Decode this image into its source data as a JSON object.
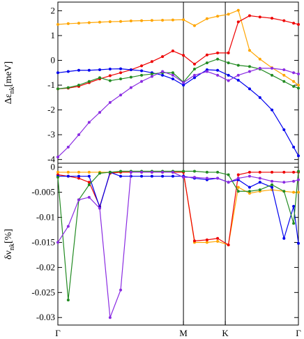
{
  "chart_data": [
    {
      "type": "line",
      "ylabel_main": "Δε",
      "ylabel_sub": "nk",
      "ylabel_unit": "[meV]",
      "ylim": [
        -4.15,
        2.35
      ],
      "yticks": [
        -4,
        -3,
        -2,
        -1,
        0,
        1,
        2
      ],
      "ytick_labels": [
        "-4",
        "-3",
        "-2",
        "-1",
        "0",
        "1",
        "2"
      ],
      "grid": false,
      "series": [
        {
          "color": "#ffa500",
          "x": [
            0.0,
            0.043,
            0.087,
            0.13,
            0.174,
            0.217,
            0.261,
            0.304,
            0.348,
            0.391,
            0.435,
            0.478,
            0.522,
            0.568,
            0.62,
            0.664,
            0.709,
            0.75,
            0.797,
            0.84,
            0.89,
            0.94,
            0.98,
            1.0
          ],
          "y": [
            1.45,
            1.48,
            1.5,
            1.52,
            1.54,
            1.56,
            1.57,
            1.59,
            1.6,
            1.61,
            1.62,
            1.63,
            1.64,
            1.4,
            1.68,
            1.78,
            1.86,
            2.02,
            0.4,
            0.05,
            -0.3,
            -0.6,
            -0.85,
            -1.0
          ]
        },
        {
          "color": "#ee0000",
          "x": [
            0.0,
            0.043,
            0.087,
            0.13,
            0.174,
            0.217,
            0.261,
            0.304,
            0.348,
            0.391,
            0.435,
            0.478,
            0.522,
            0.568,
            0.62,
            0.664,
            0.709,
            0.75,
            0.797,
            0.84,
            0.89,
            0.94,
            0.98,
            1.0
          ],
          "y": [
            -1.15,
            -1.12,
            -1.05,
            -0.9,
            -0.75,
            -0.62,
            -0.5,
            -0.38,
            -0.22,
            -0.05,
            0.15,
            0.38,
            0.2,
            -0.15,
            0.22,
            0.3,
            0.3,
            1.55,
            1.8,
            1.75,
            1.7,
            1.6,
            1.5,
            1.45
          ]
        },
        {
          "color": "#0000ee",
          "x": [
            0.0,
            0.043,
            0.087,
            0.13,
            0.174,
            0.217,
            0.261,
            0.304,
            0.348,
            0.391,
            0.435,
            0.478,
            0.522,
            0.568,
            0.62,
            0.664,
            0.709,
            0.75,
            0.797,
            0.84,
            0.89,
            0.94,
            0.98,
            1.0
          ],
          "y": [
            -0.5,
            -0.45,
            -0.4,
            -0.4,
            -0.38,
            -0.35,
            -0.34,
            -0.38,
            -0.42,
            -0.5,
            -0.6,
            -0.75,
            -1.0,
            -0.7,
            -0.38,
            -0.4,
            -0.6,
            -0.8,
            -1.15,
            -1.5,
            -2.0,
            -2.8,
            -3.5,
            -3.85
          ]
        },
        {
          "color": "#228b22",
          "x": [
            0.0,
            0.043,
            0.087,
            0.13,
            0.174,
            0.217,
            0.261,
            0.304,
            0.348,
            0.391,
            0.435,
            0.478,
            0.522,
            0.568,
            0.62,
            0.664,
            0.709,
            0.75,
            0.797,
            0.84,
            0.89,
            0.94,
            0.98,
            1.0
          ],
          "y": [
            -1.15,
            -1.1,
            -1.0,
            -0.85,
            -0.7,
            -0.82,
            -0.75,
            -0.68,
            -0.6,
            -0.55,
            -0.5,
            -0.5,
            -0.88,
            -0.35,
            -0.1,
            0.05,
            -0.1,
            -0.2,
            -0.25,
            -0.35,
            -0.6,
            -0.85,
            -1.05,
            -1.12
          ]
        },
        {
          "color": "#8a2be2",
          "x": [
            0.0,
            0.043,
            0.087,
            0.13,
            0.174,
            0.217,
            0.261,
            0.304,
            0.348,
            0.391,
            0.435,
            0.478,
            0.522,
            0.568,
            0.62,
            0.664,
            0.709,
            0.75,
            0.797,
            0.84,
            0.89,
            0.94,
            0.98,
            1.0
          ],
          "y": [
            -3.9,
            -3.5,
            -3.0,
            -2.5,
            -2.1,
            -1.7,
            -1.4,
            -1.1,
            -0.85,
            -0.65,
            -0.45,
            -0.6,
            -0.9,
            -0.6,
            -0.45,
            -0.6,
            -0.82,
            -0.6,
            -0.45,
            -0.32,
            -0.32,
            -0.38,
            -0.5,
            -0.55
          ]
        }
      ]
    },
    {
      "type": "line",
      "ylabel_main": "δν",
      "ylabel_sub": "nk",
      "ylabel_unit": "[%]",
      "ylim": [
        -0.0315,
        0.0008
      ],
      "yticks": [
        0,
        -0.005,
        -0.01,
        -0.015,
        -0.02,
        -0.025,
        -0.03
      ],
      "ytick_labels": [
        "0",
        "-0.005",
        "-0.01",
        "-0.015",
        "-0.02",
        "-0.025",
        "-0.03"
      ],
      "grid": false,
      "series": [
        {
          "color": "#ffa500",
          "x": [
            0.0,
            0.043,
            0.087,
            0.13,
            0.174,
            0.217,
            0.261,
            0.304,
            0.348,
            0.391,
            0.435,
            0.478,
            0.522,
            0.568,
            0.62,
            0.664,
            0.709,
            0.75,
            0.797,
            0.84,
            0.89,
            0.94,
            0.98,
            1.0
          ],
          "y": [
            -0.001,
            -0.001,
            -0.001,
            -0.001,
            -0.001,
            -0.001,
            -0.001,
            -0.001,
            -0.001,
            -0.001,
            -0.001,
            -0.001,
            -0.001,
            -0.015,
            -0.015,
            -0.0148,
            -0.0155,
            -0.004,
            -0.0052,
            -0.0048,
            -0.0045,
            -0.0048,
            -0.005,
            -0.005
          ]
        },
        {
          "color": "#ee0000",
          "x": [
            0.0,
            0.043,
            0.087,
            0.13,
            0.174,
            0.217,
            0.261,
            0.304,
            0.348,
            0.391,
            0.435,
            0.478,
            0.522,
            0.568,
            0.62,
            0.664,
            0.709,
            0.75,
            0.797,
            0.84,
            0.89,
            0.94,
            0.98,
            1.0
          ],
          "y": [
            -0.0015,
            -0.0018,
            -0.0022,
            -0.003,
            -0.0078,
            -0.0012,
            -0.001,
            -0.001,
            -0.001,
            -0.001,
            -0.001,
            -0.001,
            -0.001,
            -0.0147,
            -0.0145,
            -0.0142,
            -0.0155,
            -0.0015,
            -0.001,
            -0.001,
            -0.001,
            -0.001,
            -0.001,
            -0.001
          ]
        },
        {
          "color": "#0000ee",
          "x": [
            0.0,
            0.043,
            0.087,
            0.13,
            0.174,
            0.217,
            0.261,
            0.304,
            0.348,
            0.391,
            0.435,
            0.478,
            0.522,
            0.568,
            0.62,
            0.664,
            0.709,
            0.75,
            0.797,
            0.84,
            0.89,
            0.94,
            0.98,
            1.0
          ],
          "y": [
            -0.0018,
            -0.0018,
            -0.0018,
            -0.0018,
            -0.008,
            -0.001,
            -0.0018,
            -0.0018,
            -0.0018,
            -0.0018,
            -0.0018,
            -0.0018,
            -0.0018,
            -0.0022,
            -0.0025,
            -0.0022,
            -0.003,
            -0.0025,
            -0.004,
            -0.003,
            -0.004,
            -0.0142,
            -0.0078,
            -0.0152
          ]
        },
        {
          "color": "#228b22",
          "x": [
            0.0,
            0.043,
            0.087,
            0.13,
            0.174,
            0.217,
            0.261,
            0.304,
            0.348,
            0.391,
            0.435,
            0.478,
            0.522,
            0.568,
            0.62,
            0.664,
            0.709,
            0.75,
            0.797,
            0.84,
            0.89,
            0.94,
            0.98,
            1.0
          ],
          "y": [
            -0.002,
            -0.0265,
            -0.0065,
            -0.0035,
            -0.0012,
            -0.001,
            -0.0008,
            -0.0008,
            -0.0008,
            -0.0008,
            -0.0008,
            -0.0008,
            -0.0008,
            -0.0008,
            -0.001,
            -0.001,
            -0.0015,
            -0.0048,
            -0.0048,
            -0.0045,
            -0.0035,
            -0.0048,
            -0.0112,
            -0.0008
          ]
        },
        {
          "color": "#8a2be2",
          "x": [
            0.0,
            0.043,
            0.087,
            0.13,
            0.174,
            0.217,
            0.261,
            0.304,
            0.348,
            0.391,
            0.435,
            0.478,
            0.522,
            0.568,
            0.62,
            0.664,
            0.709,
            0.75,
            0.797,
            0.84,
            0.89,
            0.94,
            0.98,
            1.0
          ],
          "y": [
            -0.015,
            -0.0118,
            -0.0065,
            -0.006,
            -0.0082,
            -0.03,
            -0.0245,
            -0.001,
            -0.001,
            -0.001,
            -0.001,
            -0.001,
            -0.002,
            -0.002,
            -0.0022,
            -0.0022,
            -0.003,
            -0.0022,
            -0.0018,
            -0.0022,
            -0.0028,
            -0.003,
            -0.0028,
            -0.0025
          ]
        }
      ]
    }
  ],
  "x_axis": {
    "xlim": [
      0,
      1
    ],
    "ticks": [
      {
        "label": "Γ",
        "pos": 0.0
      },
      {
        "label": "M",
        "pos": 0.522
      },
      {
        "label": "K",
        "pos": 0.696
      },
      {
        "label": "Γ",
        "pos": 1.0
      }
    ]
  }
}
